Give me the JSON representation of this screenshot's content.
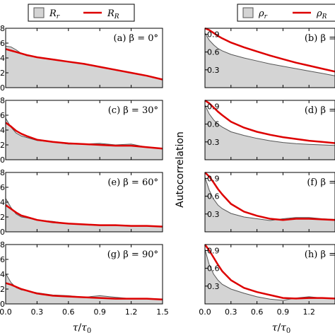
{
  "chart_data": [
    {
      "type": "area",
      "legend": [
        "R_r",
        "R_R"
      ],
      "legend_display": [
        "R",
        "R"
      ],
      "legend_subscripts": [
        "r",
        "R"
      ],
      "xlabel": "τ/τ0",
      "ylabel": "",
      "xlim": [
        0.0,
        1.5
      ],
      "xticks": [
        "0.0",
        "0.3",
        "0.6",
        "0.9",
        "1.2",
        "1.5"
      ],
      "ylim": [
        0.0,
        0.8
      ],
      "yticks_visible": [
        ".8",
        ".6",
        ".4",
        ".2",
        ".0"
      ],
      "colors": {
        "R_r_fill": "#d4d4d4",
        "R_r_line": "#555555",
        "R_R": "#dd0000"
      },
      "panels": [
        {
          "label": "(a) β = 0°",
          "x": [
            0.0,
            0.05,
            0.1,
            0.15,
            0.2,
            0.3,
            0.45,
            0.6,
            0.75,
            0.9,
            1.05,
            1.2,
            1.35,
            1.5
          ],
          "series": [
            {
              "name": "R_r",
              "values": [
                0.56,
                0.55,
                0.51,
                0.46,
                0.43,
                0.41,
                0.38,
                0.35,
                0.32,
                0.28,
                0.24,
                0.2,
                0.16,
                0.11
              ]
            },
            {
              "name": "R_R",
              "values": [
                0.52,
                0.5,
                0.48,
                0.46,
                0.44,
                0.41,
                0.38,
                0.35,
                0.32,
                0.28,
                0.24,
                0.2,
                0.16,
                0.11
              ]
            }
          ]
        },
        {
          "label": "(c) β = 30°",
          "x": [
            0.0,
            0.05,
            0.1,
            0.15,
            0.2,
            0.3,
            0.45,
            0.6,
            0.75,
            0.9,
            1.05,
            1.2,
            1.35,
            1.5
          ],
          "series": [
            {
              "name": "R_r",
              "values": [
                0.56,
                0.44,
                0.36,
                0.32,
                0.3,
                0.26,
                0.24,
                0.21,
                0.21,
                0.22,
                0.2,
                0.21,
                0.17,
                0.15
              ]
            },
            {
              "name": "R_R",
              "values": [
                0.5,
                0.45,
                0.39,
                0.35,
                0.32,
                0.27,
                0.24,
                0.22,
                0.21,
                0.2,
                0.19,
                0.19,
                0.17,
                0.15
              ]
            }
          ]
        },
        {
          "label": "(e) β = 60°",
          "x": [
            0.0,
            0.05,
            0.1,
            0.15,
            0.2,
            0.3,
            0.45,
            0.6,
            0.75,
            0.9,
            1.05,
            1.2,
            1.35,
            1.5
          ],
          "series": [
            {
              "name": "R_r",
              "values": [
                0.45,
                0.33,
                0.24,
                0.2,
                0.19,
                0.16,
                0.14,
                0.11,
                0.1,
                0.09,
                0.09,
                0.08,
                0.08,
                0.07
              ]
            },
            {
              "name": "R_R",
              "values": [
                0.36,
                0.31,
                0.26,
                0.22,
                0.2,
                0.16,
                0.13,
                0.11,
                0.1,
                0.09,
                0.09,
                0.08,
                0.08,
                0.07
              ]
            }
          ]
        },
        {
          "label": "(g) β = 90°",
          "x": [
            0.0,
            0.05,
            0.1,
            0.15,
            0.2,
            0.3,
            0.45,
            0.6,
            0.75,
            0.9,
            1.05,
            1.2,
            1.35,
            1.5
          ],
          "series": [
            {
              "name": "R_r",
              "values": [
                0.41,
                0.29,
                0.22,
                0.19,
                0.18,
                0.15,
                0.12,
                0.11,
                0.09,
                0.11,
                0.09,
                0.07,
                0.07,
                0.06
              ]
            },
            {
              "name": "R_R",
              "values": [
                0.28,
                0.26,
                0.23,
                0.2,
                0.18,
                0.14,
                0.11,
                0.1,
                0.09,
                0.08,
                0.07,
                0.07,
                0.07,
                0.06
              ]
            }
          ]
        }
      ]
    },
    {
      "type": "area",
      "legend": [
        "ρ_r",
        "ρ_R"
      ],
      "legend_display": [
        "ρ",
        "ρ"
      ],
      "legend_subscripts": [
        "r",
        "R"
      ],
      "xlabel": "τ/τ0",
      "ylabel": "Autocorrelation",
      "xlim": [
        0.0,
        1.5
      ],
      "xticks": [
        "0.0",
        "0.3",
        "0.6",
        "0.9",
        "1.2"
      ],
      "ylim": [
        0.0,
        1.0
      ],
      "yticks": [
        "0.9",
        "0.6",
        "0.3"
      ],
      "colors": {
        "rho_r_fill": "#d4d4d4",
        "rho_r_line": "#555555",
        "rho_R": "#dd0000"
      },
      "panels": [
        {
          "label": "(b) β =",
          "x": [
            0.0,
            0.05,
            0.1,
            0.15,
            0.2,
            0.3,
            0.45,
            0.6,
            0.75,
            0.9,
            1.05,
            1.2,
            1.35,
            1.5
          ],
          "series": [
            {
              "name": "ρ_r",
              "values": [
                0.92,
                0.8,
                0.72,
                0.66,
                0.62,
                0.56,
                0.5,
                0.45,
                0.4,
                0.36,
                0.32,
                0.28,
                0.24,
                0.2
              ]
            },
            {
              "name": "ρ_R",
              "values": [
                1.0,
                0.97,
                0.92,
                0.87,
                0.83,
                0.76,
                0.68,
                0.61,
                0.54,
                0.48,
                0.42,
                0.37,
                0.32,
                0.27
              ]
            }
          ]
        },
        {
          "label": "(d) β =",
          "x": [
            0.0,
            0.05,
            0.1,
            0.15,
            0.2,
            0.3,
            0.45,
            0.6,
            0.75,
            0.9,
            1.05,
            1.2,
            1.35,
            1.5
          ],
          "series": [
            {
              "name": "ρ_r",
              "values": [
                0.92,
                0.77,
                0.67,
                0.6,
                0.55,
                0.47,
                0.41,
                0.36,
                0.32,
                0.29,
                0.27,
                0.26,
                0.25,
                0.24
              ]
            },
            {
              "name": "ρ_R",
              "values": [
                1.0,
                0.95,
                0.88,
                0.81,
                0.75,
                0.64,
                0.54,
                0.47,
                0.42,
                0.38,
                0.35,
                0.32,
                0.3,
                0.28
              ]
            }
          ]
        },
        {
          "label": "(f) β =",
          "x": [
            0.0,
            0.05,
            0.1,
            0.15,
            0.2,
            0.3,
            0.45,
            0.6,
            0.75,
            0.9,
            1.05,
            1.2,
            1.35,
            1.5
          ],
          "series": [
            {
              "name": "ρ_r",
              "values": [
                0.92,
                0.7,
                0.55,
                0.45,
                0.39,
                0.31,
                0.25,
                0.22,
                0.19,
                0.22,
                0.24,
                0.24,
                0.22,
                0.21
              ]
            },
            {
              "name": "ρ_R",
              "values": [
                1.0,
                0.93,
                0.83,
                0.72,
                0.63,
                0.47,
                0.34,
                0.27,
                0.22,
                0.2,
                0.22,
                0.22,
                0.21,
                0.2
              ]
            }
          ]
        },
        {
          "label": "(h) β =",
          "x": [
            0.0,
            0.05,
            0.1,
            0.15,
            0.2,
            0.3,
            0.45,
            0.6,
            0.75,
            0.9,
            1.05,
            1.2,
            1.35,
            1.5
          ],
          "series": [
            {
              "name": "ρ_r",
              "values": [
                0.92,
                0.66,
                0.5,
                0.4,
                0.33,
                0.25,
                0.18,
                0.12,
                0.08,
                0.06,
                0.1,
                0.12,
                0.1,
                0.09
              ]
            },
            {
              "name": "ρ_R",
              "values": [
                1.0,
                0.9,
                0.78,
                0.66,
                0.55,
                0.4,
                0.27,
                0.2,
                0.15,
                0.1,
                0.09,
                0.1,
                0.1,
                0.09
              ]
            }
          ]
        }
      ]
    }
  ]
}
